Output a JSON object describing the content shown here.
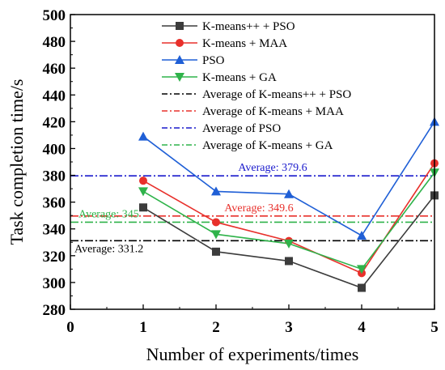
{
  "chart_data": {
    "type": "line",
    "xlabel": "Number of experiments/times",
    "ylabel": "Task completion time/s",
    "xlim": [
      0,
      5
    ],
    "ylim": [
      280,
      500
    ],
    "x_ticks": [
      "0",
      "1",
      "2",
      "3",
      "4",
      "5"
    ],
    "y_ticks": [
      "280",
      "300",
      "320",
      "340",
      "360",
      "380",
      "400",
      "420",
      "440",
      "460",
      "480",
      "500"
    ],
    "x": [
      1,
      2,
      3,
      4,
      5
    ],
    "grid": false,
    "legend_position": "top-center",
    "series": [
      {
        "name": "K-means++ + PSO",
        "color": "#3c3c3c",
        "marker": "square",
        "values": [
          356,
          323,
          316,
          296,
          365
        ]
      },
      {
        "name": "K-means + MAA",
        "color": "#e8302b",
        "marker": "circle",
        "values": [
          376,
          345,
          331,
          307,
          389
        ]
      },
      {
        "name": "PSO",
        "color": "#1f5fd6",
        "marker": "triangle-up",
        "values": [
          409,
          368,
          366,
          335,
          420
        ]
      },
      {
        "name": "K-means + GA",
        "color": "#2fb34a",
        "marker": "triangle-down",
        "values": [
          368,
          336,
          329,
          310,
          382
        ]
      }
    ],
    "averages": [
      {
        "name": "Average of K-means++ + PSO",
        "color": "#000000",
        "value": 331.2,
        "label": "Average:  331.2"
      },
      {
        "name": "Average of K-means + MAA",
        "color": "#e8302b",
        "value": 349.6,
        "label": "Average:  349.6"
      },
      {
        "name": "Average of PSO",
        "color": "#1a1acc",
        "value": 379.6,
        "label": "Average:  379.6"
      },
      {
        "name": "Average of K-means + GA",
        "color": "#2fb34a",
        "value": 345,
        "label": "Average:  345"
      }
    ]
  }
}
